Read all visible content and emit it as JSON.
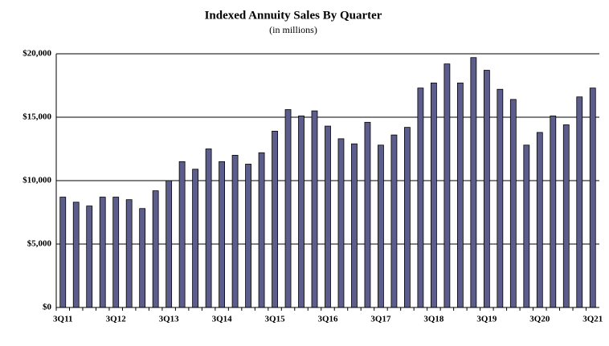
{
  "chart_data": {
    "type": "bar",
    "title": "Indexed Annuity Sales By Quarter",
    "subtitle": "(in millions)",
    "categories": [
      "3Q11",
      null,
      null,
      null,
      "3Q12",
      null,
      null,
      null,
      "3Q13",
      null,
      null,
      null,
      "3Q14",
      null,
      null,
      null,
      "3Q15",
      null,
      null,
      null,
      "3Q16",
      null,
      null,
      null,
      "3Q17",
      null,
      null,
      null,
      "3Q18",
      null,
      null,
      null,
      "3Q19",
      null,
      null,
      null,
      "3Q20",
      null,
      null,
      null,
      "3Q21"
    ],
    "values": [
      8700,
      8300,
      8000,
      8700,
      8700,
      8500,
      7800,
      9200,
      10000,
      11500,
      10900,
      12500,
      11500,
      12000,
      11300,
      12200,
      13900,
      15600,
      15100,
      15500,
      14300,
      13300,
      12900,
      14600,
      12800,
      13600,
      14200,
      17300,
      17700,
      19200,
      17700,
      19700,
      18700,
      17200,
      16400,
      12800,
      13800,
      15100,
      14400,
      16600,
      17300
    ],
    "color": "#5d5d8c",
    "ylim": [
      0,
      20000
    ],
    "yticks": [
      {
        "value": 0,
        "label": "$0"
      },
      {
        "value": 5000,
        "label": "$5,000"
      },
      {
        "value": 10000,
        "label": "$10,000"
      },
      {
        "value": 15000,
        "label": "$15,000"
      },
      {
        "value": 20000,
        "label": "$20,000"
      }
    ],
    "grid": true
  }
}
